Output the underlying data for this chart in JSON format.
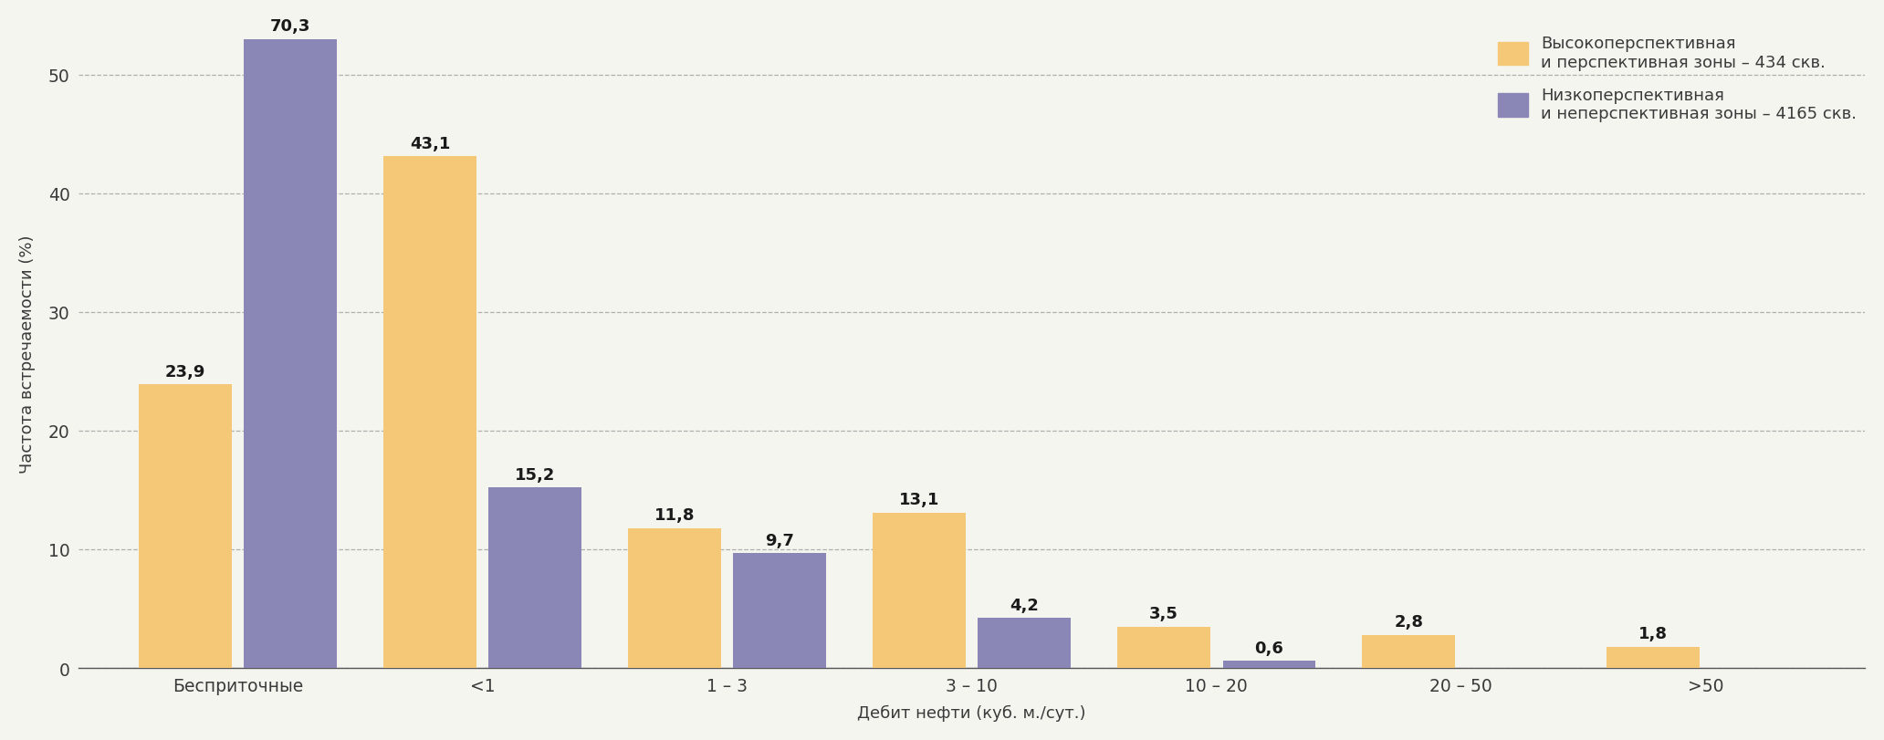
{
  "categories": [
    "Бесприточные",
    "<1",
    "1 – 3",
    "3 – 10",
    "10 – 20",
    "20 – 50",
    ">50"
  ],
  "series1_label": "Высокоперспективная\nи перспективная зоны – 434 скв.",
  "series2_label": "Низкоперспективная\nи неперспективная зоны – 4165 скв.",
  "series1_values": [
    23.9,
    43.1,
    11.8,
    13.1,
    3.5,
    2.8,
    1.8
  ],
  "series2_values": [
    70.3,
    15.2,
    9.7,
    4.2,
    0.6,
    null,
    null
  ],
  "series1_labels": [
    "23,9",
    "43,1",
    "11,8",
    "13,1",
    "3,5",
    "2,8",
    "1,8"
  ],
  "series2_labels": [
    "70,3",
    "15,2",
    "9,7",
    "4,2",
    "0,6",
    null,
    null
  ],
  "series1_color": "#F5C878",
  "series2_color": "#8A86B5",
  "ylabel": "Частота встречаемости (%)",
  "xlabel": "Дебит нефти (куб. м./сут.)",
  "ylim": [
    0,
    53
  ],
  "yticks": [
    0,
    10,
    20,
    30,
    40,
    50
  ],
  "ytick_labels": [
    "0",
    "10",
    "20",
    "30",
    "40",
    "50"
  ],
  "background_color": "#f5f5f0",
  "grid_color": "#b0b0b0",
  "bar_width": 0.38,
  "bar_gap": 0.05,
  "clip_threshold": 52.5
}
